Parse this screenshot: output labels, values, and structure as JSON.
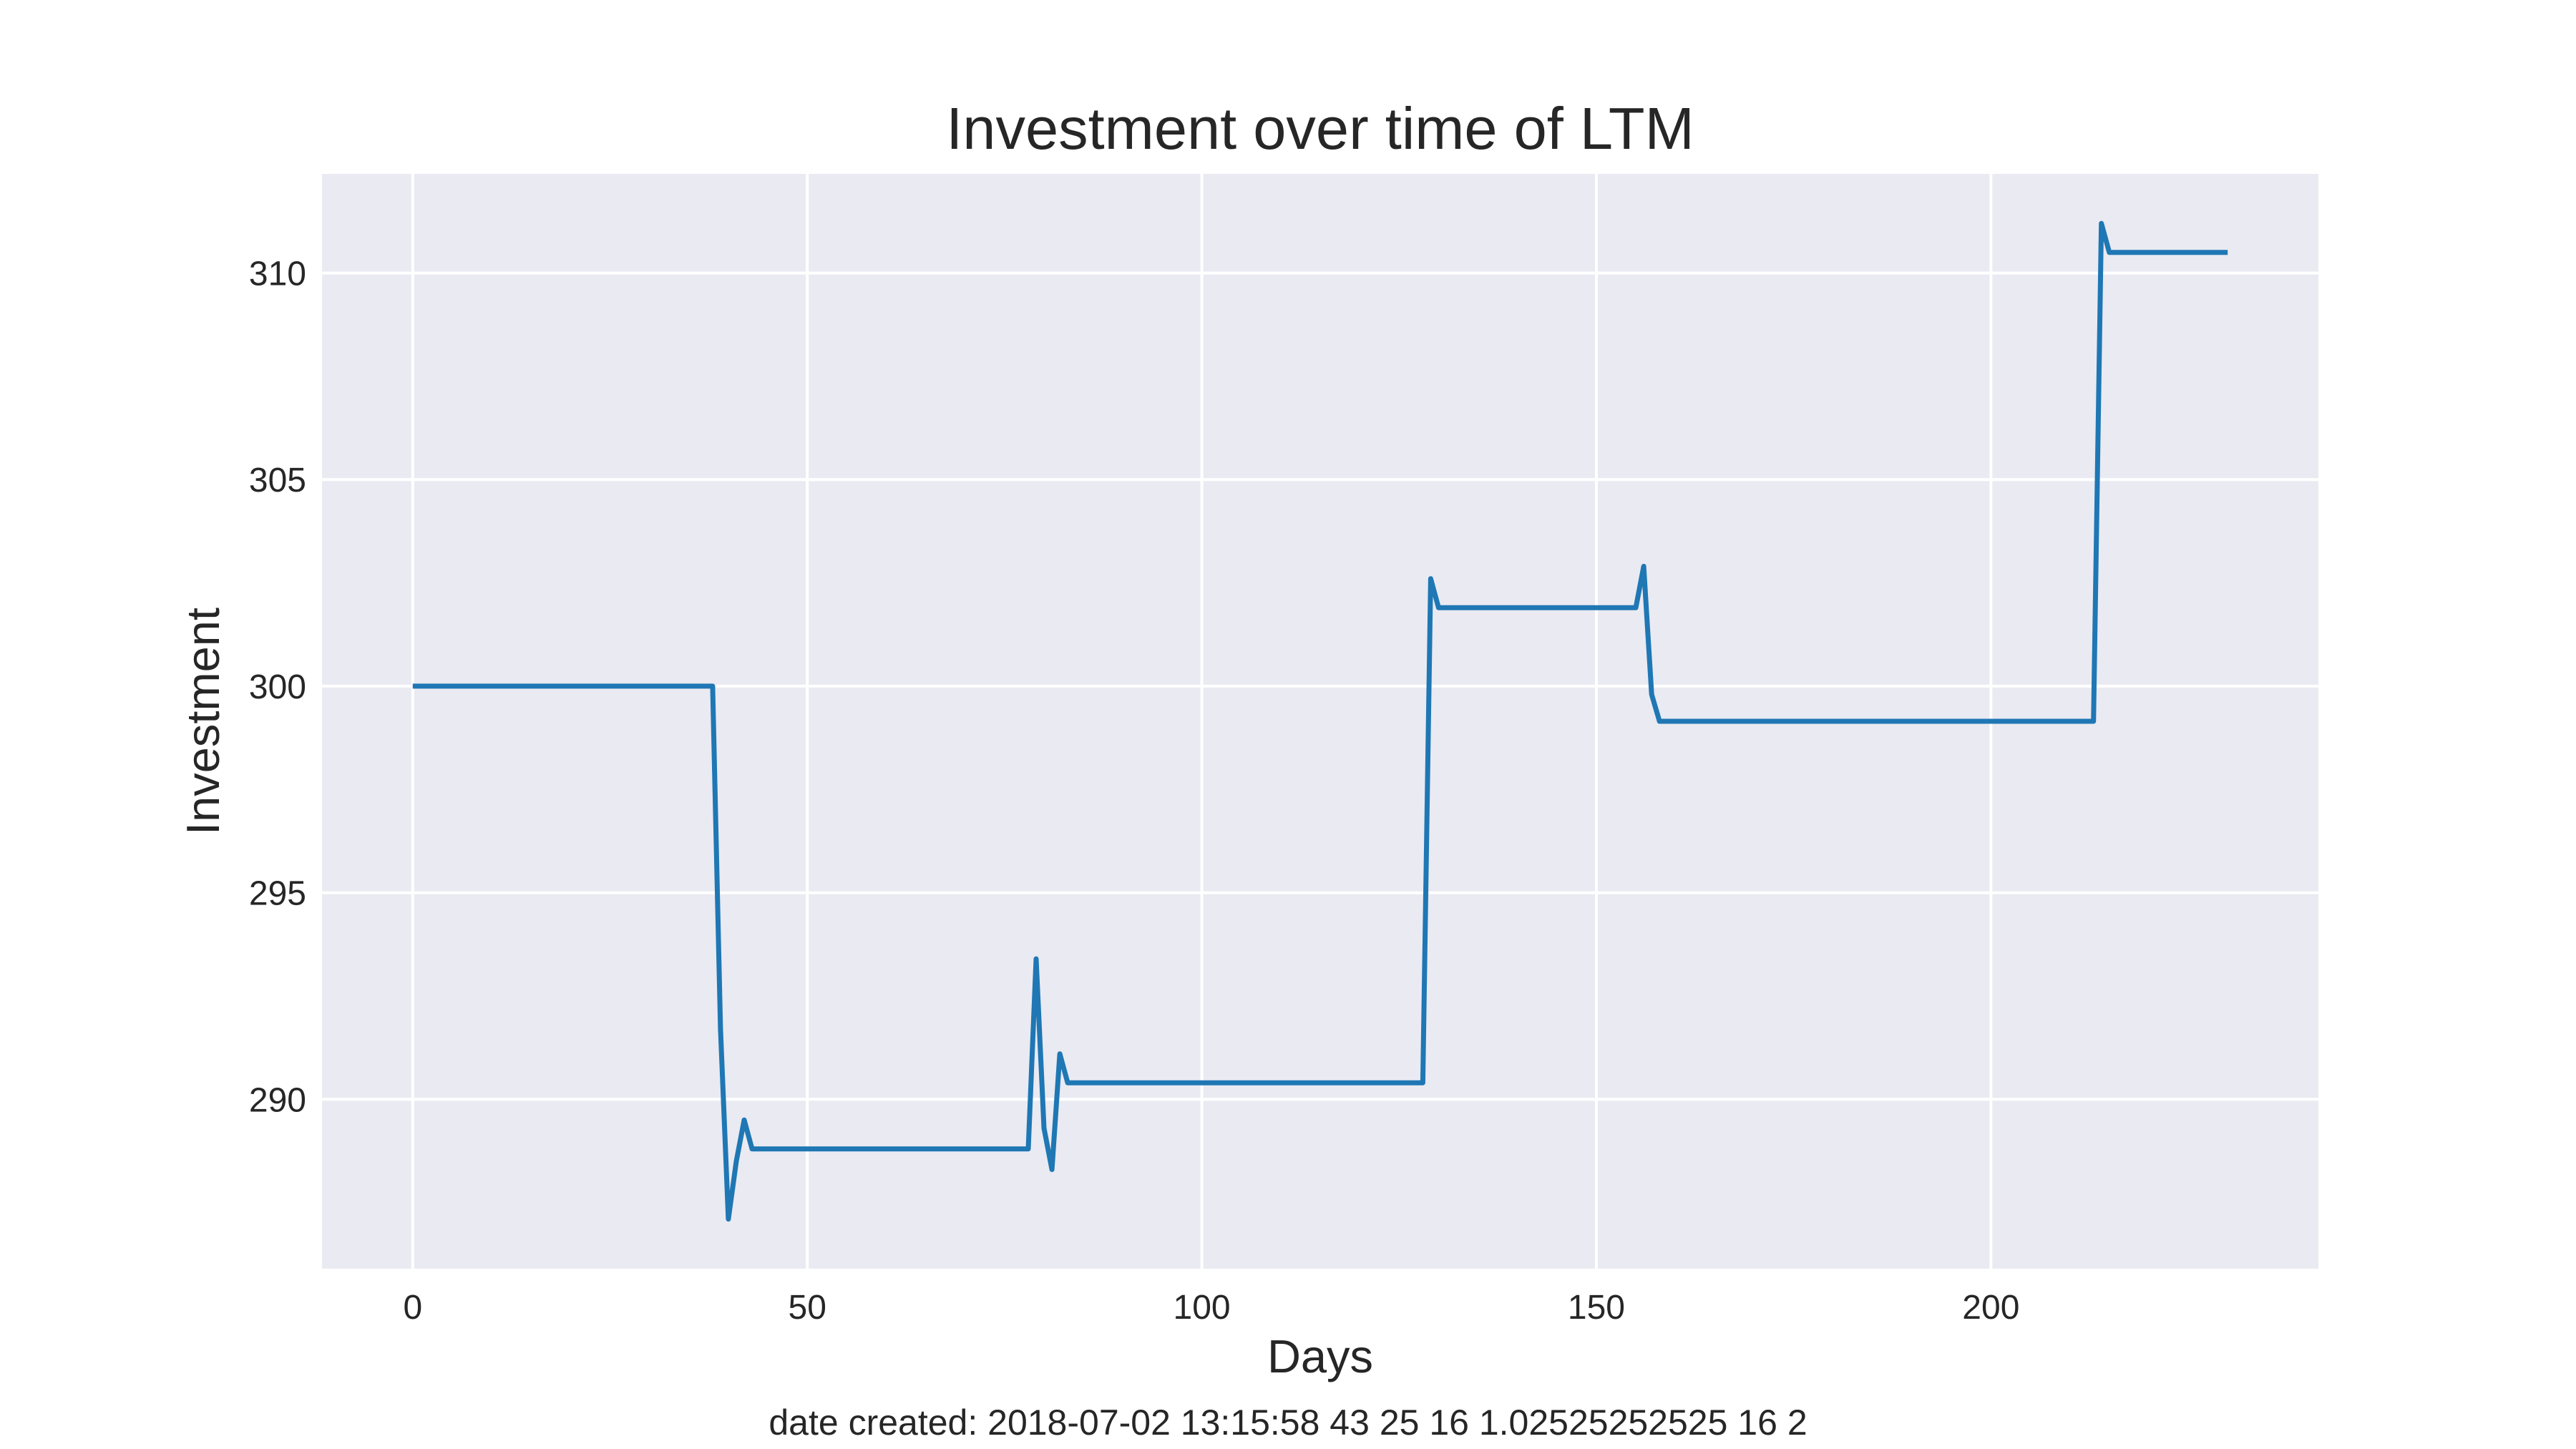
{
  "chart_data": {
    "type": "line",
    "title": "Investment over time of LTM",
    "xlabel": "Days",
    "ylabel": "Investment",
    "xlim": [
      -11.5,
      241.5
    ],
    "ylim": [
      285.9,
      312.4
    ],
    "x_ticks": [
      0,
      50,
      100,
      150,
      200
    ],
    "y_ticks": [
      290,
      295,
      300,
      305,
      310
    ],
    "grid": true,
    "legend": "none",
    "colors": {
      "plot_background": "#eaeaf2",
      "grid": "#ffffff",
      "series": "#1f77b4"
    },
    "series": [
      {
        "x": [
          0,
          38,
          39,
          40,
          41,
          42,
          43,
          78,
          79,
          80,
          81,
          82,
          83,
          128,
          129,
          130,
          155,
          156,
          157,
          158,
          213,
          214,
          215,
          230
        ],
        "values": [
          300.0,
          300.0,
          291.7,
          287.1,
          288.5,
          289.5,
          288.8,
          288.8,
          293.4,
          289.3,
          288.3,
          291.1,
          290.4,
          290.4,
          302.6,
          301.9,
          301.9,
          302.9,
          299.8,
          299.15,
          299.15,
          311.2,
          310.5,
          310.5
        ]
      }
    ]
  },
  "footer": {
    "text": "date created: 2018-07-02 13:15:58 43 25 16 1.02525252525 16 2"
  }
}
